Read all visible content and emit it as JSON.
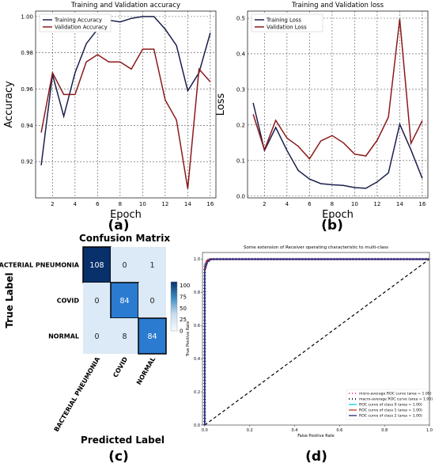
{
  "panels": {
    "a": "(a)",
    "b": "(b)",
    "c": "(c)",
    "d": "(d)"
  },
  "colors": {
    "train": "#1a1f4b",
    "val": "#8b1a1a",
    "cm_dark": "#08306b",
    "cm_mid": "#2b7bd0",
    "cm_light": "#dce9f6",
    "micro": "#ff3ea5",
    "macro": "#1a1a2e",
    "class0": "#00d4e6",
    "class1": "#c0392b",
    "class2": "#1f2a8a",
    "chance": "#000000"
  },
  "chart_data": [
    {
      "id": "accuracy",
      "type": "line",
      "title": "Training and Validation accuracy",
      "xlabel": "Epoch",
      "ylabel": "Accuracy",
      "xlim": [
        0.5,
        16.5
      ],
      "ylim": [
        0.9,
        1.003
      ],
      "xticks": [
        2,
        4,
        6,
        8,
        10,
        12,
        14,
        16
      ],
      "yticks": [
        0.92,
        0.94,
        0.96,
        0.98,
        1.0
      ],
      "ytick_labels": [
        "0.92",
        "0.94",
        "0.96",
        "0.98",
        "1.00"
      ],
      "grid": true,
      "legend": "top-left",
      "x": [
        1,
        2,
        3,
        4,
        5,
        6,
        7,
        8,
        9,
        10,
        11,
        12,
        13,
        14,
        15,
        16
      ],
      "series": [
        {
          "name": "Training Accuracy",
          "color_key": "train",
          "values": [
            0.918,
            0.968,
            0.945,
            0.969,
            0.985,
            0.993,
            0.998,
            0.997,
            0.999,
            1.0,
            1.0,
            0.993,
            0.984,
            0.959,
            0.969,
            0.991
          ]
        },
        {
          "name": "Validation Accuracy",
          "color_key": "val",
          "values": [
            0.936,
            0.969,
            0.957,
            0.957,
            0.975,
            0.979,
            0.975,
            0.975,
            0.971,
            0.982,
            0.982,
            0.954,
            0.943,
            0.905,
            0.971,
            0.964
          ]
        }
      ]
    },
    {
      "id": "loss",
      "type": "line",
      "title": "Training and Validation loss",
      "xlabel": "Epoch",
      "ylabel": "Loss",
      "xlim": [
        0.5,
        16.5
      ],
      "ylim": [
        -0.005,
        0.52
      ],
      "xticks": [
        2,
        4,
        6,
        8,
        10,
        12,
        14,
        16
      ],
      "yticks": [
        0.0,
        0.1,
        0.2,
        0.3,
        0.4,
        0.5
      ],
      "ytick_labels": [
        "0.0",
        "0.1",
        "0.2",
        "0.3",
        "0.4",
        "0.5"
      ],
      "grid": true,
      "legend": "top-left",
      "x": [
        1,
        2,
        3,
        4,
        5,
        6,
        7,
        8,
        9,
        10,
        11,
        12,
        13,
        14,
        15,
        16
      ],
      "series": [
        {
          "name": "Training Loss",
          "color_key": "train",
          "values": [
            0.262,
            0.128,
            0.193,
            0.128,
            0.072,
            0.048,
            0.035,
            0.032,
            0.03,
            0.024,
            0.022,
            0.04,
            0.065,
            0.202,
            0.13,
            0.05
          ]
        },
        {
          "name": "Validation Loss",
          "color_key": "val",
          "values": [
            0.23,
            0.13,
            0.213,
            0.163,
            0.14,
            0.105,
            0.155,
            0.17,
            0.15,
            0.118,
            0.113,
            0.157,
            0.222,
            0.498,
            0.148,
            0.212
          ]
        }
      ]
    },
    {
      "id": "confusion",
      "type": "heatmap",
      "title": "Confusion Matrix",
      "xlabel": "Predicted Label",
      "ylabel": "True Label",
      "row_labels": [
        "BACTERIAL PNEUMONIA",
        "COVID",
        "NORMAL"
      ],
      "col_labels": [
        "BACTERIAL PNEUMONIA",
        "COVID",
        "NORMAL"
      ],
      "matrix": [
        [
          108,
          0,
          1
        ],
        [
          0,
          84,
          0
        ],
        [
          0,
          8,
          84
        ]
      ],
      "highlight_diagonal": true,
      "colorbar_ticks": [
        0,
        25,
        50,
        75,
        100
      ],
      "colorbar_labels": [
        "0",
        "25",
        "50",
        "75",
        "100"
      ],
      "vmax": 108
    },
    {
      "id": "roc",
      "type": "line",
      "title": "Some extension of Receiver operating characteristic to multi-class",
      "xlabel": "False Positive Rate",
      "ylabel": "True Positive Rate",
      "xlim": [
        -0.01,
        1.0
      ],
      "ylim": [
        0.0,
        1.04
      ],
      "xticks": [
        0.0,
        0.2,
        0.4,
        0.6,
        0.8,
        1.0
      ],
      "yticks": [
        0.0,
        0.2,
        0.4,
        0.6,
        0.8,
        1.0
      ],
      "xtick_labels": [
        "0.0",
        "0.2",
        "0.4",
        "0.6",
        "0.8",
        "1.0"
      ],
      "ytick_labels": [
        "0.0",
        "0.2",
        "0.4",
        "0.6",
        "0.8",
        "1.0"
      ],
      "grid": false,
      "legend": "bottom-right",
      "series": [
        {
          "name": "micro-average ROC curve (area = 1.00)",
          "color_key": "micro",
          "dash": "1,3",
          "width": 3,
          "x": [
            0,
            0,
            0.01,
            0.02,
            1
          ],
          "y": [
            0,
            0.96,
            0.99,
            1.0,
            1.0
          ]
        },
        {
          "name": "macro-average ROC curve (area = 1.00)",
          "color_key": "macro",
          "dash": "1,3",
          "width": 3,
          "x": [
            0,
            0,
            0.01,
            0.03,
            1
          ],
          "y": [
            0,
            0.94,
            0.98,
            1.0,
            1.0
          ]
        },
        {
          "name": "ROC curve of class 0 (area = 1.00)",
          "color_key": "class0",
          "dash": "",
          "width": 1.6,
          "x": [
            0,
            0,
            0.01,
            0.015,
            1
          ],
          "y": [
            0,
            0.97,
            0.98,
            1.0,
            1.0
          ]
        },
        {
          "name": "ROC curve of class 1 (area = 1.00)",
          "color_key": "class1",
          "dash": "",
          "width": 1.6,
          "x": [
            0,
            0,
            0.008,
            0.02,
            1
          ],
          "y": [
            0,
            0.95,
            0.99,
            1.0,
            1.0
          ]
        },
        {
          "name": "ROC curve of class 2 (area = 1.00)",
          "color_key": "class2",
          "dash": "",
          "width": 1.6,
          "x": [
            0,
            0,
            0.012,
            0.03,
            1
          ],
          "y": [
            0,
            0.93,
            0.985,
            1.0,
            1.0
          ]
        }
      ],
      "reference": {
        "color_key": "chance",
        "x": [
          0,
          1
        ],
        "y": [
          0,
          1
        ]
      }
    }
  ]
}
